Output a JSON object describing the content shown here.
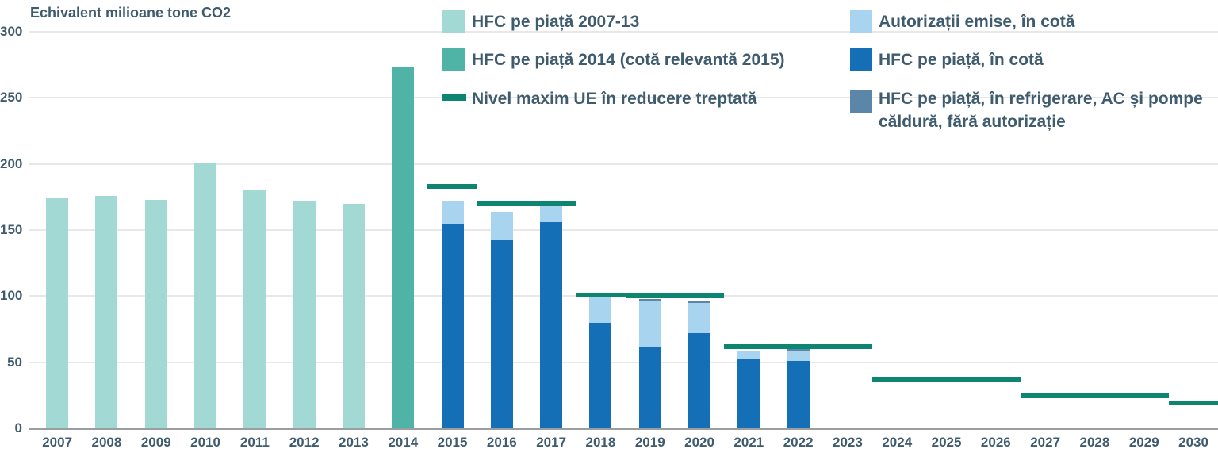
{
  "chart_data": {
    "type": "bar",
    "title": "Echivalent milioane tone CO2",
    "categories": [
      "2007",
      "2008",
      "2009",
      "2010",
      "2011",
      "2012",
      "2013",
      "2014",
      "2015",
      "2016",
      "2017",
      "2018",
      "2019",
      "2020",
      "2021",
      "2022",
      "2023",
      "2024",
      "2025",
      "2026",
      "2027",
      "2028",
      "2029",
      "2030"
    ],
    "ylim": [
      0,
      300
    ],
    "yticks": [
      0,
      50,
      100,
      150,
      200,
      250,
      300
    ],
    "grid": "horizontal",
    "legend_position": "top",
    "series": [
      {
        "name": "HFC pe piață 2007-13",
        "color_key": "lightTeal",
        "values": [
          174,
          176,
          173,
          201,
          180,
          172,
          170,
          0,
          0,
          0,
          0,
          0,
          0,
          0,
          0,
          0,
          0,
          0,
          0,
          0,
          0,
          0,
          0,
          0
        ]
      },
      {
        "name": "HFC pe piață 2014 (cotă relevantă 2015)",
        "color_key": "teal",
        "values": [
          0,
          0,
          0,
          0,
          0,
          0,
          0,
          273,
          0,
          0,
          0,
          0,
          0,
          0,
          0,
          0,
          0,
          0,
          0,
          0,
          0,
          0,
          0,
          0
        ]
      },
      {
        "name": "HFC pe piață, în cotă",
        "color_key": "blue",
        "values": [
          0,
          0,
          0,
          0,
          0,
          0,
          0,
          0,
          154,
          143,
          156,
          80,
          61,
          72,
          52,
          51,
          0,
          0,
          0,
          0,
          0,
          0,
          0,
          0
        ]
      },
      {
        "name": "Autorizații emise, în cotă",
        "color_key": "lightBlue",
        "values": [
          0,
          0,
          0,
          0,
          0,
          0,
          0,
          0,
          18,
          21,
          12,
          19,
          35,
          23,
          6,
          8,
          0,
          0,
          0,
          0,
          0,
          0,
          0,
          0
        ]
      },
      {
        "name": "HFC pe piață, în refrigerare, AC și pompe căldură, fără autorizație",
        "color_key": "grayBlue",
        "values": [
          0,
          0,
          0,
          0,
          0,
          0,
          0,
          0,
          0,
          0,
          0,
          1,
          2,
          1.5,
          1,
          1.5,
          0,
          0,
          0,
          0,
          0,
          0,
          0,
          0
        ]
      }
    ],
    "cap_lines": {
      "name": "Nivel maxim UE în reducere treptată",
      "color_key": "green",
      "segments": [
        {
          "from": "2015",
          "to": "2015",
          "value": 183
        },
        {
          "from": "2016",
          "to": "2017",
          "value": 170
        },
        {
          "from": "2018",
          "to": "2018",
          "value": 101
        },
        {
          "from": "2019",
          "to": "2020",
          "value": 100
        },
        {
          "from": "2021",
          "to": "2023",
          "value": 62
        },
        {
          "from": "2024",
          "to": "2026",
          "value": 37
        },
        {
          "from": "2027",
          "to": "2029",
          "value": 24.5
        },
        {
          "from": "2030",
          "to": "2030",
          "value": 19.5,
          "extend_right": true
        }
      ]
    },
    "colors": {
      "lightTeal": "#a2d9d4",
      "teal": "#4fb3a5",
      "green": "#0e8570",
      "lightBlue": "#a8d4f0",
      "blue": "#156fb7",
      "grayBlue": "#5b86a8",
      "text": "#3f5b6e",
      "grid": "#e8e8e8",
      "baseline": "#9b9ea1",
      "background": "#ffffff"
    }
  }
}
